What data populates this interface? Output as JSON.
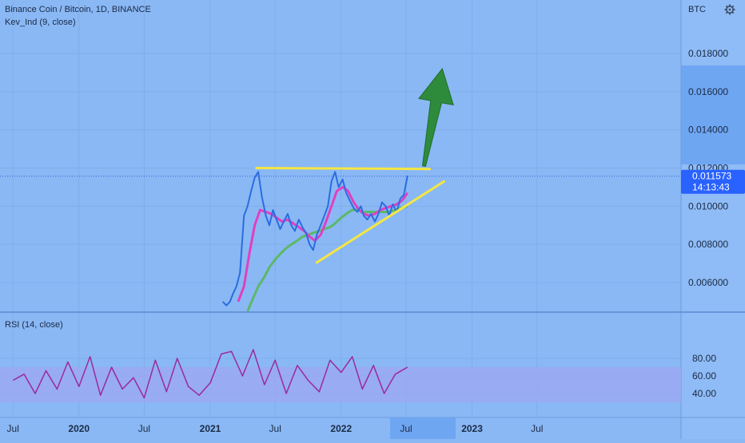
{
  "header": {
    "title": "Binance Coin / Bitcoin, 1D, BINANCE",
    "indicator": "Kev_Ind  (9, close)",
    "currency": "BTC"
  },
  "rsi_panel": {
    "label": "RSI (14, close)"
  },
  "price_marker": {
    "price": "0.011573",
    "countdown": "14:13:43"
  },
  "colors": {
    "background": "#8ab8f5",
    "price_line": "#2a6de0",
    "ma_fast": "#e040c0",
    "ma_slow": "#5cb868",
    "trendline": "#f5e642",
    "arrow": "#2e8b3c",
    "rsi_line": "#9c2a9a",
    "rsi_band": "#9ba8f2",
    "marker": "#2962ff"
  },
  "chart_data": [
    {
      "type": "line",
      "panel": "price",
      "ylim": [
        0.0045,
        0.0195
      ],
      "y_ticks": [
        "0.018000",
        "0.016000",
        "0.014000",
        "0.012000",
        "0.010000",
        "0.008000",
        "0.006000"
      ],
      "y_tick_values": [
        0.018,
        0.016,
        0.014,
        0.012,
        0.01,
        0.008,
        0.006
      ],
      "series": [
        {
          "role": "price",
          "x": [
            "2021-02-05",
            "2021-02-15",
            "2021-02-25",
            "2021-03-05",
            "2021-03-15",
            "2021-03-25",
            "2021-04-05",
            "2021-04-15",
            "2021-04-25",
            "2021-05-05",
            "2021-05-15",
            "2021-05-25",
            "2021-06-05",
            "2021-06-15",
            "2021-06-25",
            "2021-07-05",
            "2021-07-15",
            "2021-07-25",
            "2021-08-05",
            "2021-08-15",
            "2021-08-25",
            "2021-09-05",
            "2021-09-15",
            "2021-09-25",
            "2021-10-05",
            "2021-10-15",
            "2021-10-25",
            "2021-11-05",
            "2021-11-15",
            "2021-11-25",
            "2021-12-05",
            "2021-12-15",
            "2021-12-25",
            "2022-01-05",
            "2022-01-15",
            "2022-01-25",
            "2022-02-05",
            "2022-02-15",
            "2022-02-25",
            "2022-03-05",
            "2022-03-15",
            "2022-03-25",
            "2022-04-05",
            "2022-04-15",
            "2022-04-25",
            "2022-05-05",
            "2022-05-15",
            "2022-05-25",
            "2022-06-05",
            "2022-06-15",
            "2022-06-25",
            "2022-07-05"
          ],
          "values": [
            0.005,
            0.0048,
            0.005,
            0.0054,
            0.0058,
            0.0065,
            0.0095,
            0.01,
            0.0108,
            0.0115,
            0.0118,
            0.0105,
            0.0095,
            0.009,
            0.0098,
            0.0093,
            0.0088,
            0.0092,
            0.0096,
            0.009,
            0.0087,
            0.0093,
            0.0089,
            0.0086,
            0.008,
            0.0077,
            0.0085,
            0.009,
            0.0095,
            0.01,
            0.0113,
            0.0118,
            0.011,
            0.0114,
            0.0107,
            0.0103,
            0.0099,
            0.0097,
            0.01,
            0.0095,
            0.0093,
            0.0096,
            0.0092,
            0.0096,
            0.0102,
            0.01,
            0.0095,
            0.0101,
            0.0097,
            0.0104,
            0.0106,
            0.0116
          ]
        },
        {
          "role": "fast-ma",
          "x": [
            "2021-03-20",
            "2021-04-05",
            "2021-04-20",
            "2021-05-05",
            "2021-05-20",
            "2021-06-05",
            "2021-06-20",
            "2021-07-05",
            "2021-07-20",
            "2021-08-05",
            "2021-08-20",
            "2021-09-05",
            "2021-09-20",
            "2021-10-05",
            "2021-10-20",
            "2021-11-05",
            "2021-11-20",
            "2021-12-05",
            "2021-12-20",
            "2022-01-05",
            "2022-01-20",
            "2022-02-05",
            "2022-02-20",
            "2022-03-05",
            "2022-03-20",
            "2022-04-05",
            "2022-04-20",
            "2022-05-05",
            "2022-05-20",
            "2022-06-05",
            "2022-06-20",
            "2022-07-05"
          ],
          "values": [
            0.005,
            0.0058,
            0.0075,
            0.009,
            0.0098,
            0.0097,
            0.0096,
            0.0094,
            0.0092,
            0.0093,
            0.0091,
            0.0089,
            0.0087,
            0.0084,
            0.0082,
            0.0085,
            0.0092,
            0.01,
            0.0108,
            0.011,
            0.0108,
            0.0102,
            0.0098,
            0.0096,
            0.0095,
            0.0096,
            0.0098,
            0.0099,
            0.01,
            0.0101,
            0.0103,
            0.0107
          ]
        },
        {
          "role": "slow-ma",
          "x": [
            "2021-04-15",
            "2021-05-01",
            "2021-05-15",
            "2021-06-01",
            "2021-06-15",
            "2021-07-01",
            "2021-07-15",
            "2021-08-01",
            "2021-08-15",
            "2021-09-01",
            "2021-09-15",
            "2021-10-01",
            "2021-10-15",
            "2021-11-01",
            "2021-11-15",
            "2021-12-01",
            "2021-12-15",
            "2022-01-01",
            "2022-01-15",
            "2022-02-01",
            "2022-02-15",
            "2022-03-01",
            "2022-03-15",
            "2022-04-01",
            "2022-04-15",
            "2022-05-01",
            "2022-05-15",
            "2022-06-01",
            "2022-06-15",
            "2022-07-05"
          ],
          "values": [
            0.0045,
            0.0052,
            0.0058,
            0.0063,
            0.0068,
            0.0072,
            0.0075,
            0.0078,
            0.008,
            0.0082,
            0.0084,
            0.0085,
            0.0086,
            0.0087,
            0.0088,
            0.0089,
            0.0091,
            0.0094,
            0.0096,
            0.0098,
            0.0098,
            0.0097,
            0.0097,
            0.0097,
            0.0097,
            0.0097,
            0.0097,
            0.0098,
            0.0099,
            0.01
          ]
        }
      ],
      "annotations": [
        {
          "kind": "trendline",
          "from": [
            "2021-05-10",
            0.012
          ],
          "to": [
            "2022-09-05",
            0.01195
          ]
        },
        {
          "kind": "trendline",
          "from": [
            "2021-10-25",
            0.00705
          ],
          "to": [
            "2022-10-15",
            0.0113
          ]
        },
        {
          "kind": "arrow",
          "from": [
            "2022-08-20",
            0.0121
          ],
          "to": [
            "2022-10-10",
            0.0172
          ]
        }
      ],
      "current_price": 0.011573
    },
    {
      "type": "line",
      "panel": "rsi",
      "ylim": [
        24,
        93
      ],
      "y_ticks": [
        "80.00",
        "60.00",
        "40.00"
      ],
      "y_tick_values": [
        80,
        60,
        40
      ],
      "band": [
        30,
        70
      ],
      "series": [
        {
          "role": "rsi",
          "x": [
            "2019-07-01",
            "2019-08-01",
            "2019-09-01",
            "2019-10-01",
            "2019-11-01",
            "2019-12-01",
            "2020-01-01",
            "2020-02-01",
            "2020-03-01",
            "2020-04-01",
            "2020-05-01",
            "2020-06-01",
            "2020-07-01",
            "2020-08-01",
            "2020-09-01",
            "2020-10-01",
            "2020-11-01",
            "2020-12-01",
            "2021-01-01",
            "2021-02-01",
            "2021-03-01",
            "2021-04-01",
            "2021-05-01",
            "2021-06-01",
            "2021-07-01",
            "2021-08-01",
            "2021-09-01",
            "2021-10-01",
            "2021-11-01",
            "2021-12-01",
            "2022-01-01",
            "2022-02-01",
            "2022-03-01",
            "2022-04-01",
            "2022-05-01",
            "2022-06-01",
            "2022-07-05"
          ],
          "values": [
            55,
            62,
            40,
            66,
            45,
            76,
            48,
            82,
            38,
            70,
            45,
            58,
            35,
            78,
            42,
            80,
            48,
            38,
            52,
            85,
            88,
            60,
            90,
            50,
            78,
            40,
            72,
            55,
            42,
            78,
            64,
            82,
            45,
            72,
            40,
            62,
            70
          ]
        }
      ]
    }
  ],
  "time_axis": {
    "ticks": [
      {
        "label": "Jul",
        "date": "2019-07-01",
        "bold": false
      },
      {
        "label": "2020",
        "date": "2020-01-01",
        "bold": true
      },
      {
        "label": "Jul",
        "date": "2020-07-01",
        "bold": false
      },
      {
        "label": "2021",
        "date": "2021-01-01",
        "bold": true
      },
      {
        "label": "Jul",
        "date": "2021-07-01",
        "bold": false
      },
      {
        "label": "2022",
        "date": "2022-01-01",
        "bold": true
      },
      {
        "label": "Jul",
        "date": "2022-07-01",
        "bold": false
      },
      {
        "label": "2023",
        "date": "2023-01-01",
        "bold": true
      },
      {
        "label": "Jul",
        "date": "2023-07-01",
        "bold": false
      }
    ],
    "highlight": "2022-07-01"
  }
}
